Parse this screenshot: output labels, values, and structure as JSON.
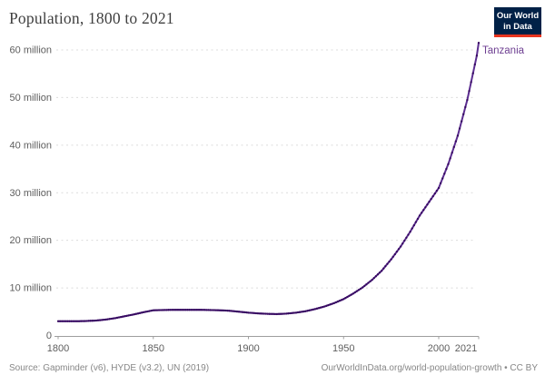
{
  "header": {
    "title": "Population, 1800 to 2021",
    "logo": {
      "line1": "Our World",
      "line2": "in Data",
      "bg_color": "#002147",
      "accent_color": "#e8351f"
    }
  },
  "chart_data": {
    "type": "line",
    "title": "Population, 1800 to 2021",
    "grid": true,
    "xlim": [
      1800,
      2021
    ],
    "ylim": [
      0,
      60
    ],
    "value_unit": "million people",
    "legend_position": "end-of-line-label",
    "line_color": "#5b2d90",
    "marker_color": "#35095e",
    "label_color": "#6d3e91",
    "y_ticks": [
      {
        "value": 0,
        "label": "0"
      },
      {
        "value": 10,
        "label": "10 million"
      },
      {
        "value": 20,
        "label": "20 million"
      },
      {
        "value": 30,
        "label": "30 million"
      },
      {
        "value": 40,
        "label": "40 million"
      },
      {
        "value": 50,
        "label": "50 million"
      },
      {
        "value": 60,
        "label": "60 million"
      }
    ],
    "x_ticks": [
      {
        "value": 1800,
        "label": "1800"
      },
      {
        "value": 1850,
        "label": "1850"
      },
      {
        "value": 1900,
        "label": "1900"
      },
      {
        "value": 1950,
        "label": "1950"
      },
      {
        "value": 2000,
        "label": "2000"
      },
      {
        "value": 2021,
        "label": "2021"
      }
    ],
    "series": [
      {
        "name": "Tanzania",
        "x": [
          1800,
          1805,
          1810,
          1815,
          1820,
          1825,
          1830,
          1835,
          1840,
          1845,
          1850,
          1855,
          1860,
          1865,
          1870,
          1875,
          1880,
          1885,
          1890,
          1895,
          1900,
          1905,
          1910,
          1915,
          1920,
          1925,
          1930,
          1935,
          1940,
          1945,
          1950,
          1955,
          1960,
          1965,
          1970,
          1975,
          1980,
          1985,
          1990,
          1995,
          2000,
          2005,
          2010,
          2015,
          2020,
          2021
        ],
        "values": [
          3.0,
          3.0,
          3.0,
          3.05,
          3.15,
          3.35,
          3.65,
          4.05,
          4.45,
          4.9,
          5.3,
          5.35,
          5.4,
          5.4,
          5.4,
          5.4,
          5.35,
          5.3,
          5.2,
          5.0,
          4.8,
          4.65,
          4.55,
          4.5,
          4.6,
          4.8,
          5.1,
          5.55,
          6.1,
          6.8,
          7.65,
          8.8,
          10.1,
          11.7,
          13.6,
          16.0,
          18.7,
          21.8,
          25.2,
          28.1,
          31.0,
          36.0,
          42.0,
          49.5,
          58.8,
          61.5
        ]
      }
    ]
  },
  "footer": {
    "source": "Source: Gapminder (v6), HYDE (v3.2), UN (2019)",
    "link": "OurWorldInData.org/world-population-growth • CC BY"
  }
}
